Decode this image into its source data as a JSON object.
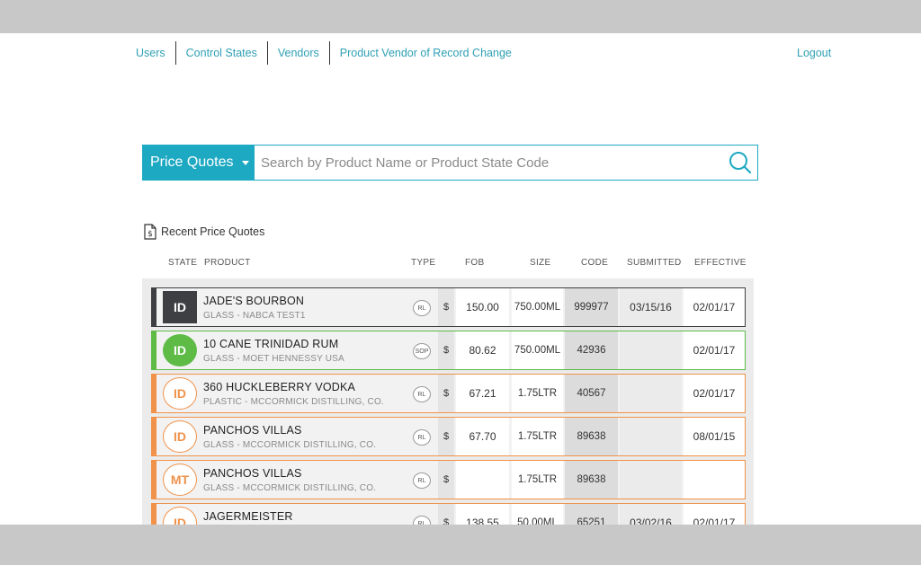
{
  "nav": {
    "items": [
      "Users",
      "Control States",
      "Vendors",
      "Product Vendor of Record Change"
    ],
    "logout": "Logout"
  },
  "search": {
    "dropdown_label": "Price Quotes",
    "placeholder": "Search by Product Name or Product State Code"
  },
  "section": {
    "title": "Recent Price Quotes"
  },
  "columns": {
    "state": "STATE",
    "product": "PRODUCT",
    "type": "TYPE",
    "fob": "FOB",
    "size": "SIZE",
    "code": "CODE",
    "submitted": "SUBMITTED",
    "effective": "EFFECTIVE"
  },
  "colors": {
    "accent": "#1ea9c2",
    "link": "#2fa0b4",
    "dark": "#3d3f42",
    "green": "#5dbb46",
    "orange": "#f0924a"
  },
  "rows": [
    {
      "state": "ID",
      "name": "JADE'S BOURBON",
      "sub": "GLASS - NABCA TEST1",
      "type": "RL",
      "currency": "$",
      "fob": "150.00",
      "size": "750.00ML",
      "code": "999977",
      "submitted": "03/15/16",
      "effective": "02/01/17",
      "style": "dark"
    },
    {
      "state": "ID",
      "name": "10 CANE TRINIDAD RUM",
      "sub": "GLASS - MOET HENNESSY USA",
      "type": "SOP",
      "currency": "$",
      "fob": "80.62",
      "size": "750.00ML",
      "code": "42936",
      "submitted": "",
      "effective": "02/01/17",
      "style": "green"
    },
    {
      "state": "ID",
      "name": "360 HUCKLEBERRY VODKA",
      "sub": "PLASTIC - MCCORMICK DISTILLING, CO.",
      "type": "RL",
      "currency": "$",
      "fob": "67.21",
      "size": "1.75LTR",
      "code": "40567",
      "submitted": "",
      "effective": "02/01/17",
      "style": "orange"
    },
    {
      "state": "ID",
      "name": "PANCHOS VILLAS",
      "sub": "GLASS - MCCORMICK DISTILLING, CO.",
      "type": "RL",
      "currency": "$",
      "fob": "67.70",
      "size": "1.75LTR",
      "code": "89638",
      "submitted": "",
      "effective": "08/01/15",
      "style": "orange"
    },
    {
      "state": "MT",
      "name": "PANCHOS VILLAS",
      "sub": "GLASS - MCCORMICK DISTILLING, CO.",
      "type": "RL",
      "currency": "$",
      "fob": "",
      "size": "1.75LTR",
      "code": "89638",
      "submitted": "",
      "effective": "",
      "style": "orange"
    },
    {
      "state": "ID",
      "name": "JAGERMEISTER",
      "sub": "",
      "type": "RL",
      "currency": "$",
      "fob": "138.55",
      "size": "50.00ML",
      "code": "65251",
      "submitted": "03/02/16",
      "effective": "02/01/17",
      "style": "orange"
    }
  ]
}
